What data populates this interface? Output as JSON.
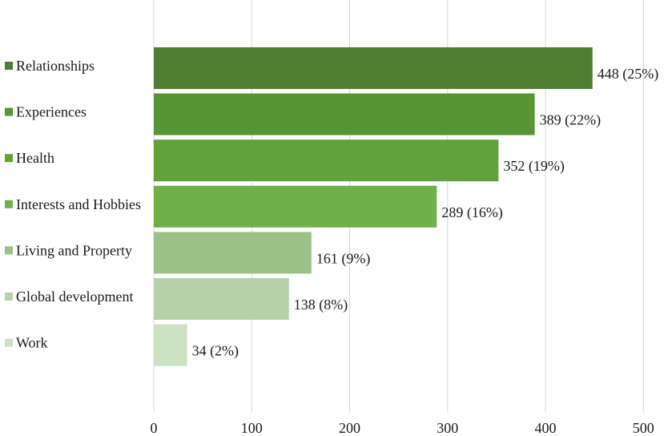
{
  "chart_data": {
    "type": "bar",
    "orientation": "horizontal",
    "title": "",
    "xlabel": "",
    "ylabel": "",
    "xlim": [
      0,
      500
    ],
    "x_ticks": [
      0,
      100,
      200,
      300,
      400,
      500
    ],
    "x_tick_labels": [
      "0",
      "100",
      "200",
      "300",
      "400",
      "500"
    ],
    "grid": "vertical gridlines",
    "categories": [
      "Relationships",
      "Experiences",
      "Health",
      "Interests and Hobbies",
      "Living and Property",
      "Global development",
      "Work"
    ],
    "values": [
      448,
      389,
      352,
      289,
      161,
      138,
      34
    ],
    "data_labels": [
      "448 (25%)",
      "389 (22%)",
      "352 (19%)",
      "289 (16%)",
      "161 (9%)",
      "138 (8%)",
      "34 (2%)"
    ],
    "colors": [
      "#4e7e2f",
      "#579434",
      "#62a23d",
      "#70b04a",
      "#9cc188",
      "#b5d1a7",
      "#cce1c2"
    ],
    "legend_placement": "left of bars, one colored square per category"
  }
}
